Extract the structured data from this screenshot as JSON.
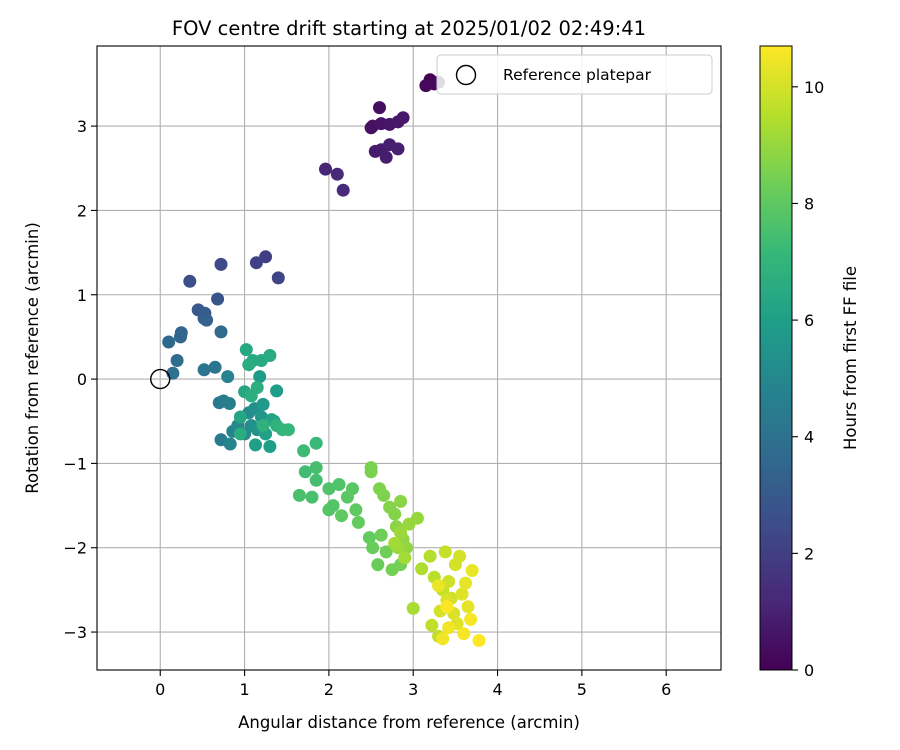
{
  "chart_data": {
    "type": "scatter",
    "title": "FOV centre drift starting at 2025/01/02 02:49:41",
    "xlabel": "Angular distance from reference (arcmin)",
    "ylabel": "Rotation from reference (arcmin)",
    "xlim": [
      -0.75,
      6.65
    ],
    "ylim": [
      -3.45,
      3.95
    ],
    "xticks": [
      0,
      1,
      2,
      3,
      4,
      5,
      6
    ],
    "xtick_labels": [
      "0",
      "1",
      "2",
      "3",
      "4",
      "5",
      "6"
    ],
    "yticks": [
      -3,
      -2,
      -1,
      0,
      1,
      2,
      3
    ],
    "ytick_labels": [
      "−3",
      "−2",
      "−1",
      "0",
      "1",
      "2",
      "3"
    ],
    "grid": true,
    "legend": {
      "placement": "top-right",
      "entries": [
        {
          "label": "Reference platepar",
          "marker": "open-circle"
        }
      ]
    },
    "reference_point": {
      "x": 0,
      "y": 0
    },
    "colorbar": {
      "label": "Hours from first FF file",
      "colormap": "viridis",
      "range": [
        0,
        10.7
      ],
      "ticks": [
        0,
        2,
        4,
        6,
        8,
        10
      ],
      "tick_labels": [
        "0",
        "2",
        "4",
        "6",
        "8",
        "10"
      ]
    },
    "colormap_stops": [
      "#440154",
      "#482878",
      "#3e4989",
      "#31688e",
      "#26828e",
      "#1f9e89",
      "#35b779",
      "#6ece58",
      "#b5de2b",
      "#fde725"
    ],
    "points": [
      [
        3.2,
        3.55,
        0.0
      ],
      [
        3.25,
        3.5,
        0.1
      ],
      [
        3.15,
        3.48,
        0.2
      ],
      [
        3.3,
        3.52,
        0.3
      ],
      [
        2.6,
        3.22,
        0.4
      ],
      [
        2.5,
        2.98,
        0.5
      ],
      [
        2.52,
        3.0,
        0.5
      ],
      [
        2.62,
        3.03,
        0.55
      ],
      [
        2.72,
        3.02,
        0.6
      ],
      [
        2.82,
        3.05,
        0.65
      ],
      [
        2.88,
        3.1,
        0.7
      ],
      [
        2.55,
        2.7,
        0.75
      ],
      [
        2.62,
        2.72,
        0.8
      ],
      [
        2.68,
        2.63,
        0.85
      ],
      [
        2.72,
        2.78,
        0.9
      ],
      [
        2.82,
        2.73,
        0.95
      ],
      [
        1.96,
        2.49,
        1.1
      ],
      [
        2.1,
        2.43,
        1.2
      ],
      [
        2.17,
        2.24,
        1.3
      ],
      [
        1.25,
        1.45,
        2.0
      ],
      [
        1.14,
        1.38,
        2.1
      ],
      [
        1.4,
        1.2,
        2.2
      ],
      [
        0.72,
        1.36,
        2.4
      ],
      [
        0.35,
        1.16,
        2.6
      ],
      [
        0.68,
        0.95,
        2.8
      ],
      [
        0.45,
        0.82,
        3.0
      ],
      [
        0.53,
        0.78,
        3.1
      ],
      [
        0.52,
        0.72,
        3.2
      ],
      [
        0.55,
        0.7,
        3.3
      ],
      [
        0.25,
        0.55,
        3.4
      ],
      [
        0.24,
        0.5,
        3.5
      ],
      [
        0.1,
        0.44,
        3.6
      ],
      [
        0.72,
        0.56,
        3.7
      ],
      [
        0.2,
        0.22,
        3.8
      ],
      [
        0.15,
        0.07,
        4.0
      ],
      [
        0.52,
        0.11,
        4.1
      ],
      [
        0.65,
        0.14,
        4.2
      ],
      [
        0.7,
        -0.28,
        4.3
      ],
      [
        0.75,
        -0.26,
        4.4
      ],
      [
        0.72,
        -0.72,
        4.5
      ],
      [
        0.82,
        -0.29,
        4.6
      ],
      [
        0.8,
        0.03,
        4.7
      ],
      [
        0.86,
        -0.62,
        4.8
      ],
      [
        0.83,
        -0.77,
        4.9
      ],
      [
        0.92,
        -0.55,
        5.0
      ],
      [
        1.0,
        -0.65,
        5.1
      ],
      [
        1.05,
        -0.4,
        5.2
      ],
      [
        1.08,
        -0.55,
        5.3
      ],
      [
        1.12,
        -0.35,
        5.4
      ],
      [
        1.15,
        -0.6,
        5.5
      ],
      [
        1.2,
        -0.45,
        5.6
      ],
      [
        1.22,
        -0.3,
        5.7
      ],
      [
        1.18,
        0.03,
        5.8
      ],
      [
        1.38,
        -0.14,
        5.9
      ],
      [
        1.3,
        -0.8,
        6.0
      ],
      [
        1.13,
        -0.78,
        6.0
      ],
      [
        1.25,
        -0.65,
        6.1
      ],
      [
        1.32,
        -0.48,
        6.2
      ],
      [
        1.35,
        -0.5,
        6.2
      ],
      [
        0.95,
        -0.45,
        6.3
      ],
      [
        1.0,
        -0.15,
        6.3
      ],
      [
        1.02,
        0.35,
        6.4
      ],
      [
        1.1,
        0.22,
        6.4
      ],
      [
        1.2,
        0.22,
        6.5
      ],
      [
        1.3,
        0.28,
        6.5
      ],
      [
        1.05,
        0.17,
        6.6
      ],
      [
        0.95,
        -0.65,
        6.6
      ],
      [
        1.08,
        -0.2,
        6.7
      ],
      [
        1.15,
        -0.1,
        6.7
      ],
      [
        1.22,
        -0.55,
        6.8
      ],
      [
        1.38,
        -0.55,
        6.9
      ],
      [
        1.45,
        -0.6,
        7.0
      ],
      [
        1.52,
        -0.6,
        7.1
      ],
      [
        1.85,
        -0.76,
        7.2
      ],
      [
        1.7,
        -0.85,
        7.3
      ],
      [
        1.72,
        -1.1,
        7.4
      ],
      [
        1.85,
        -1.05,
        7.5
      ],
      [
        1.85,
        -1.2,
        7.5
      ],
      [
        1.65,
        -1.38,
        7.6
      ],
      [
        1.8,
        -1.4,
        7.6
      ],
      [
        2.0,
        -1.3,
        7.7
      ],
      [
        2.12,
        -1.25,
        7.7
      ],
      [
        2.05,
        -1.5,
        7.8
      ],
      [
        2.0,
        -1.55,
        7.8
      ],
      [
        2.22,
        -1.4,
        7.9
      ],
      [
        2.28,
        -1.3,
        7.9
      ],
      [
        2.15,
        -1.62,
        8.0
      ],
      [
        2.32,
        -1.55,
        8.0
      ],
      [
        2.35,
        -1.7,
        8.1
      ],
      [
        2.48,
        -1.88,
        8.1
      ],
      [
        2.52,
        -2.0,
        8.2
      ],
      [
        2.58,
        -2.2,
        8.2
      ],
      [
        2.68,
        -2.05,
        8.3
      ],
      [
        2.62,
        -1.85,
        8.3
      ],
      [
        2.75,
        -2.26,
        8.4
      ],
      [
        2.85,
        -2.2,
        8.4
      ],
      [
        2.5,
        -1.05,
        8.5
      ],
      [
        2.5,
        -1.1,
        8.5
      ],
      [
        2.6,
        -1.3,
        8.6
      ],
      [
        2.65,
        -1.38,
        8.6
      ],
      [
        2.72,
        -1.52,
        8.7
      ],
      [
        2.78,
        -1.6,
        8.7
      ],
      [
        2.85,
        -1.45,
        8.8
      ],
      [
        2.8,
        -1.75,
        8.8
      ],
      [
        2.88,
        -1.9,
        8.9
      ],
      [
        2.92,
        -2.0,
        8.9
      ],
      [
        2.95,
        -1.72,
        9.0
      ],
      [
        3.05,
        -1.65,
        9.0
      ],
      [
        2.82,
        -2.0,
        9.1
      ],
      [
        2.85,
        -1.82,
        9.1
      ],
      [
        2.9,
        -2.12,
        9.2
      ],
      [
        2.78,
        -1.95,
        9.2
      ],
      [
        3.0,
        -2.72,
        9.3
      ],
      [
        3.1,
        -2.25,
        9.4
      ],
      [
        3.2,
        -2.1,
        9.5
      ],
      [
        3.25,
        -2.35,
        9.6
      ],
      [
        3.22,
        -2.92,
        9.7
      ],
      [
        3.3,
        -3.05,
        9.7
      ],
      [
        3.35,
        -2.5,
        9.8
      ],
      [
        3.38,
        -2.05,
        9.8
      ],
      [
        3.42,
        -2.4,
        9.9
      ],
      [
        3.45,
        -2.6,
        9.9
      ],
      [
        3.5,
        -2.2,
        10.0
      ],
      [
        3.55,
        -2.1,
        10.0
      ],
      [
        3.32,
        -2.75,
        10.0
      ],
      [
        3.4,
        -2.62,
        10.1
      ],
      [
        3.48,
        -2.78,
        10.1
      ],
      [
        3.52,
        -2.9,
        10.2
      ],
      [
        3.58,
        -2.55,
        10.2
      ],
      [
        3.62,
        -2.42,
        10.3
      ],
      [
        3.65,
        -2.7,
        10.3
      ],
      [
        3.7,
        -2.27,
        10.4
      ],
      [
        3.3,
        -2.45,
        10.4
      ],
      [
        3.35,
        -3.08,
        10.5
      ],
      [
        3.42,
        -2.95,
        10.5
      ],
      [
        3.6,
        -3.02,
        10.6
      ],
      [
        3.68,
        -2.85,
        10.6
      ],
      [
        3.78,
        -3.1,
        10.7
      ],
      [
        3.4,
        -2.7,
        10.7
      ]
    ]
  }
}
